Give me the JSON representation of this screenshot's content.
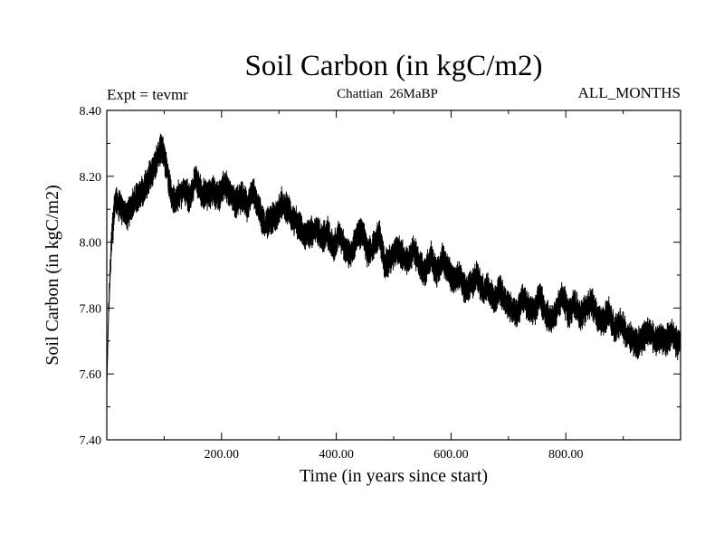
{
  "chart_data": {
    "type": "line",
    "title": "Soil Carbon (in kgC/m2)",
    "experiment_label": "Expt = tevmr",
    "period_label": "Chattian  26MaBP",
    "months_label": "ALL_MONTHS",
    "xlabel": "Time (in years since start)",
    "ylabel": "Soil Carbon (in kgC/m2)",
    "xlim": [
      0,
      1000
    ],
    "ylim": [
      7.4,
      8.4
    ],
    "x_ticks": [
      200,
      400,
      600,
      800
    ],
    "x_tick_labels": [
      "200.00",
      "400.00",
      "600.00",
      "800.00"
    ],
    "y_ticks": [
      7.4,
      7.6,
      7.8,
      8.0,
      8.2,
      8.4
    ],
    "y_tick_labels": [
      "7.40",
      "7.60",
      "7.80",
      "8.00",
      "8.20",
      "8.40"
    ],
    "series": [
      {
        "name": "Soil Carbon",
        "color": "#000000",
        "x": [
          0,
          3,
          8,
          15,
          25,
          35,
          45,
          55,
          65,
          75,
          85,
          95,
          105,
          115,
          125,
          135,
          145,
          155,
          165,
          175,
          185,
          195,
          205,
          215,
          225,
          235,
          245,
          255,
          265,
          275,
          285,
          295,
          305,
          315,
          325,
          335,
          345,
          355,
          365,
          375,
          385,
          395,
          405,
          415,
          425,
          435,
          445,
          455,
          465,
          475,
          485,
          495,
          505,
          515,
          525,
          535,
          545,
          555,
          565,
          575,
          585,
          595,
          605,
          615,
          625,
          635,
          645,
          655,
          665,
          675,
          685,
          695,
          705,
          715,
          725,
          735,
          745,
          755,
          765,
          775,
          785,
          795,
          805,
          815,
          825,
          835,
          845,
          855,
          865,
          875,
          885,
          895,
          905,
          915,
          925,
          935,
          945,
          955,
          965,
          975,
          985,
          995,
          1000
        ],
        "y": [
          7.56,
          7.78,
          8.0,
          8.13,
          8.1,
          8.08,
          8.12,
          8.14,
          8.16,
          8.2,
          8.24,
          8.29,
          8.22,
          8.12,
          8.14,
          8.16,
          8.13,
          8.2,
          8.15,
          8.14,
          8.16,
          8.13,
          8.18,
          8.15,
          8.12,
          8.14,
          8.11,
          8.16,
          8.1,
          8.05,
          8.07,
          8.08,
          8.12,
          8.1,
          8.07,
          8.05,
          8.02,
          8.03,
          8.04,
          8.01,
          8.03,
          7.98,
          8.03,
          7.98,
          7.96,
          8.01,
          8.03,
          7.97,
          7.99,
          8.03,
          7.93,
          7.95,
          7.98,
          7.96,
          7.94,
          7.98,
          7.93,
          7.91,
          7.96,
          7.9,
          7.95,
          7.92,
          7.88,
          7.9,
          7.85,
          7.87,
          7.9,
          7.85,
          7.87,
          7.82,
          7.86,
          7.82,
          7.8,
          7.78,
          7.83,
          7.8,
          7.79,
          7.84,
          7.78,
          7.76,
          7.8,
          7.84,
          7.78,
          7.81,
          7.78,
          7.8,
          7.82,
          7.77,
          7.76,
          7.79,
          7.73,
          7.76,
          7.72,
          7.71,
          7.69,
          7.71,
          7.74,
          7.7,
          7.71,
          7.7,
          7.72,
          7.69,
          7.7
        ],
        "variability": 0.035
      }
    ]
  }
}
